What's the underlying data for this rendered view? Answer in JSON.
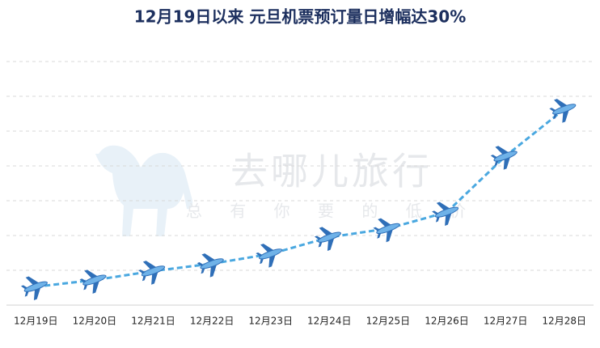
{
  "chart_data": {
    "type": "line",
    "title": "12月19日以来 元旦机票预订量日增幅达30%",
    "watermark": "去哪儿旅行",
    "watermark_slogan": "总 有 你 要 的 低 价",
    "categories": [
      "12月19日",
      "12月20日",
      "12月21日",
      "12月22日",
      "12月23日",
      "12月24日",
      "12月25日",
      "12月26日",
      "12月27日",
      "12月28日"
    ],
    "values": [
      0.53,
      0.72,
      0.98,
      1.19,
      1.47,
      1.95,
      2.2,
      2.67,
      4.28,
      5.63
    ],
    "color": "#4aa8e0",
    "ylim": [
      0,
      7
    ],
    "yticks": [
      1,
      2,
      3,
      4,
      5,
      6,
      7
    ],
    "grid": true
  }
}
